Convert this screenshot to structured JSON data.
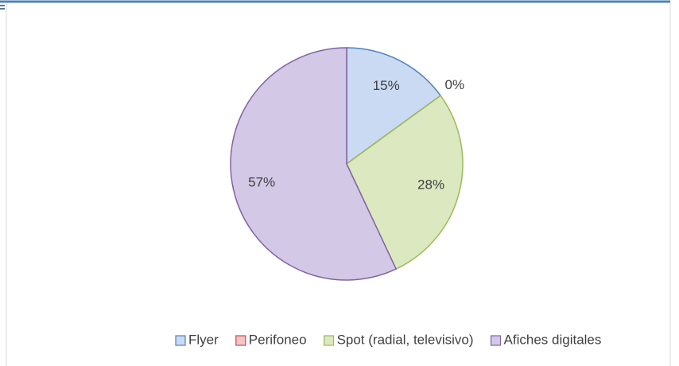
{
  "chart_data": {
    "type": "pie",
    "categories": [
      "Flyer",
      "Perifoneo",
      "Spot (radial, televisivo)",
      "Afiches digitales"
    ],
    "values": [
      15,
      0,
      28,
      57
    ],
    "value_labels": [
      "15%",
      "0%",
      "28%",
      "57%"
    ],
    "colors": [
      "#c9daf2",
      "#f2c4c3",
      "#dbe8c0",
      "#d3c8e6"
    ],
    "edge_colors": [
      "#4f81bd",
      "#c0504d",
      "#9bbb59",
      "#8064a2"
    ],
    "legend": "bottom"
  }
}
